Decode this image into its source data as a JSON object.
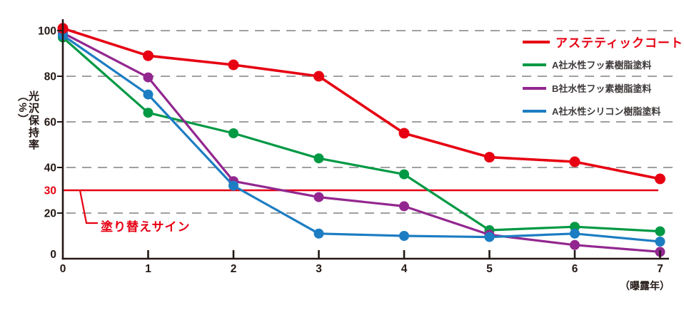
{
  "page": {
    "background": "#ffffff"
  },
  "chart_data": {
    "type": "line",
    "title": "",
    "xlabel": "（曝露年）",
    "ylabel": "光沢保持率（%）",
    "x": [
      0,
      1,
      2,
      3,
      4,
      5,
      6,
      7
    ],
    "x_tick_labels": [
      "0",
      "1",
      "2",
      "3",
      "4",
      "5",
      "6",
      "7"
    ],
    "yticks": [
      0,
      20,
      40,
      60,
      80,
      100
    ],
    "ylim": [
      0,
      105
    ],
    "grid": true,
    "grid_values": [
      20,
      40,
      60,
      80,
      100
    ],
    "grid_style": "dashed",
    "legend_position": "top-right",
    "threshold_line": {
      "value": 30,
      "tick_label": "30",
      "annotation": "塗り替えサイン",
      "color": "#e60012"
    },
    "series": [
      {
        "name": "アステティックコート",
        "color": "#e60012",
        "emphasized": true,
        "values": [
          101,
          89,
          85,
          80,
          55,
          44.5,
          42.5,
          35
        ]
      },
      {
        "name": "A社水性フッ素樹脂塗料",
        "color": "#009944",
        "emphasized": false,
        "values": [
          97,
          64,
          55,
          44,
          37,
          12.5,
          14,
          12
        ]
      },
      {
        "name": "B社水性フッ素樹脂塗料",
        "color": "#92278f",
        "emphasized": false,
        "values": [
          99,
          79.5,
          34,
          27,
          23,
          10.5,
          6,
          3
        ]
      },
      {
        "name": "A社水性シリコン樹脂塗料",
        "color": "#1d7dc2",
        "emphasized": false,
        "values": [
          98,
          72,
          32,
          11,
          10,
          9.5,
          11,
          7.5
        ]
      }
    ],
    "colors": {
      "axis": "#231815",
      "grid": "#9fa0a0",
      "tick_label": "#231815",
      "legend_text": "#3e3a39"
    }
  }
}
